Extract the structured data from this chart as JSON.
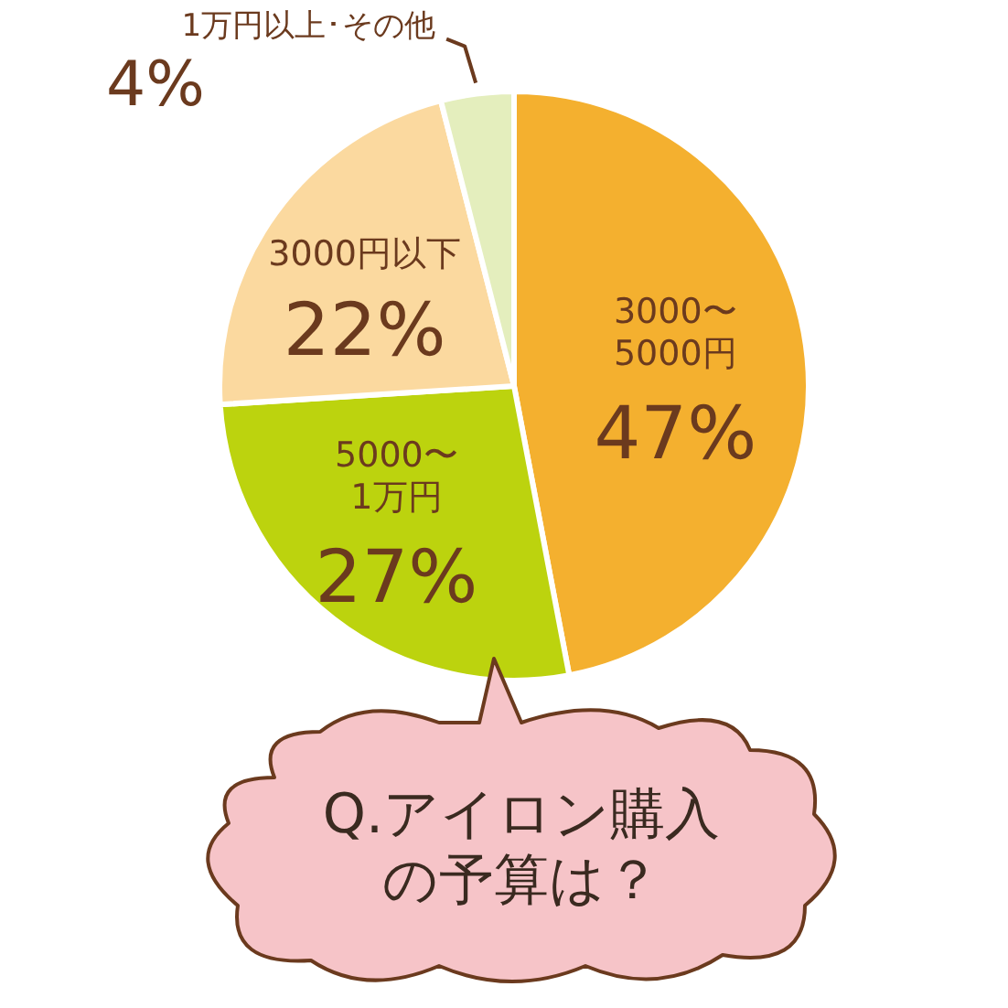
{
  "chart_data": {
    "type": "pie",
    "title": "Q.アイロン購入の予算は？",
    "categories": [
      "3000〜5000円",
      "5000〜1万円",
      "3000円以下",
      "1万円以上･その他"
    ],
    "values": [
      47,
      27,
      22,
      4
    ],
    "colors": [
      "#f4b02f",
      "#bcd30e",
      "#fbd99f",
      "#e4eebd"
    ],
    "value_labels": [
      "47%",
      "27%",
      "22%",
      "4%"
    ]
  }
}
